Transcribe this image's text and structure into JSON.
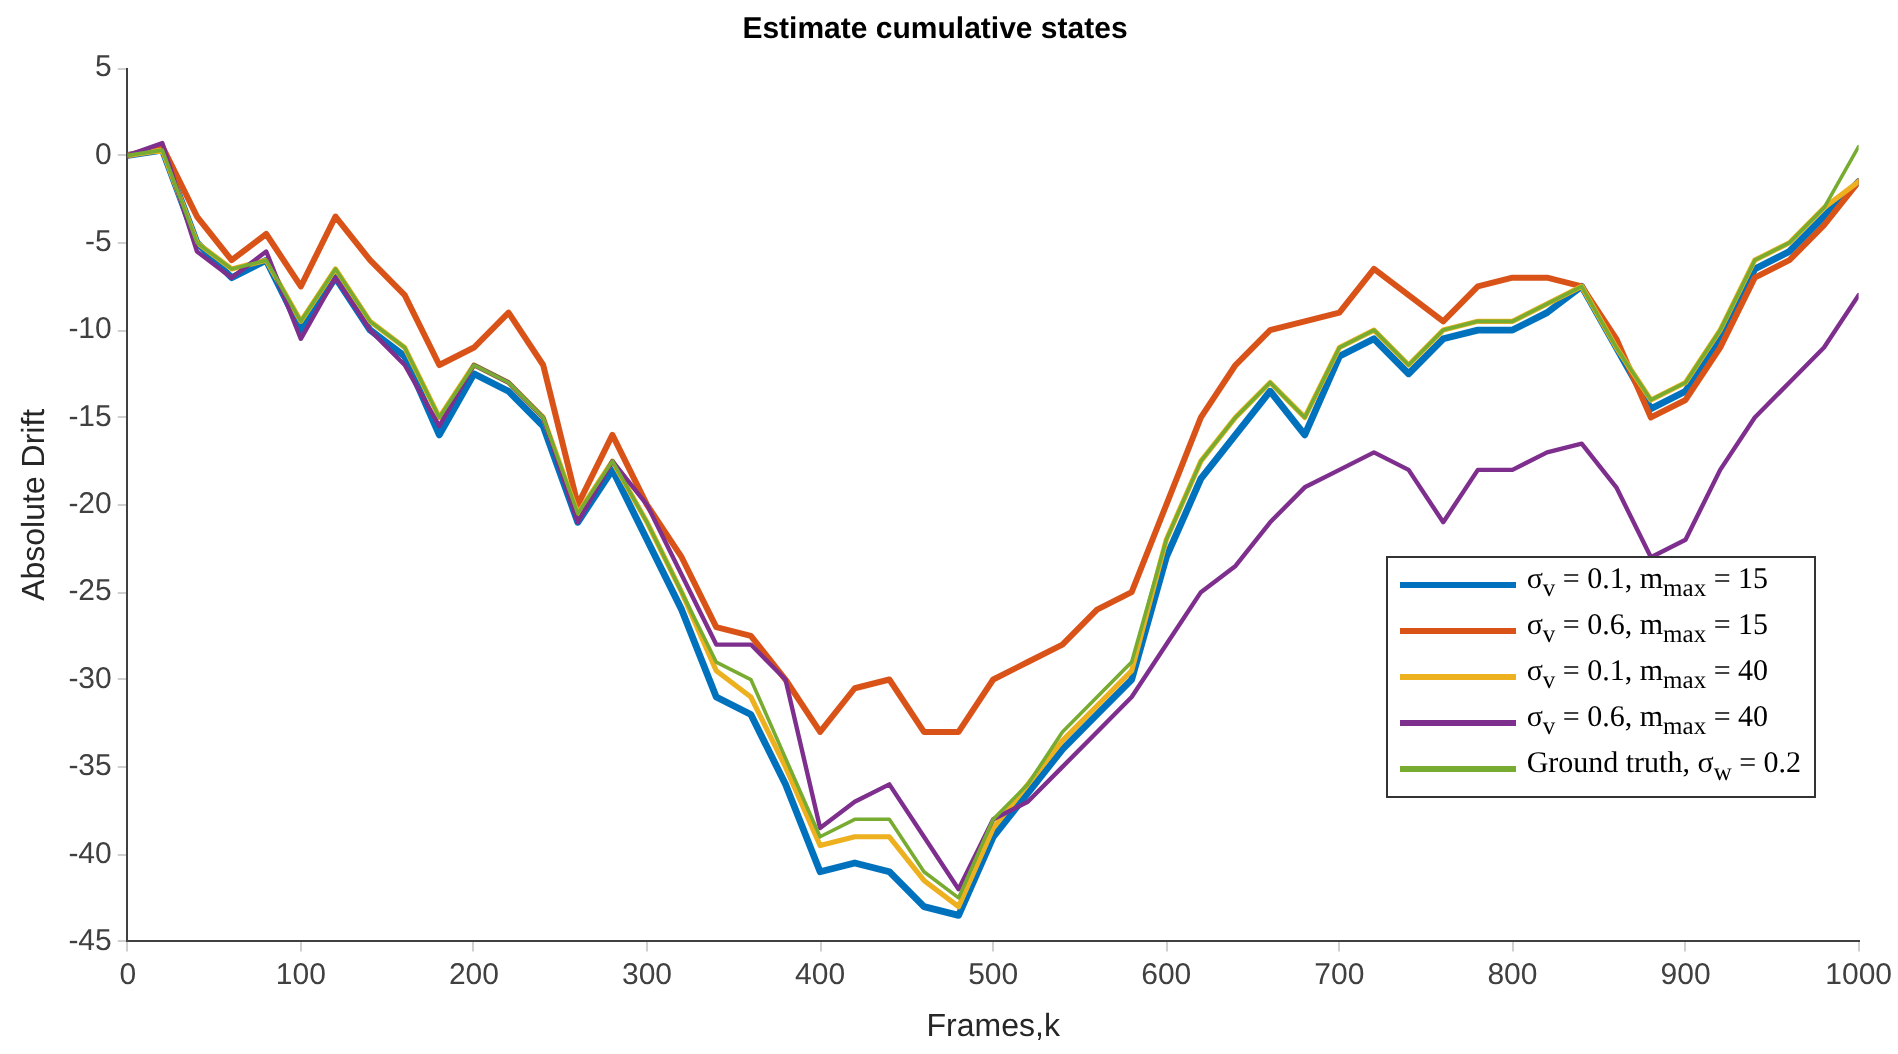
{
  "chart_data": {
    "type": "line",
    "title": "Estimate cumulative states",
    "xlabel": "Frames,k",
    "ylabel": "Absolute Drift",
    "x": [
      0,
      20,
      40,
      60,
      80,
      100,
      120,
      140,
      160,
      180,
      200,
      220,
      240,
      260,
      280,
      300,
      320,
      340,
      360,
      380,
      400,
      420,
      440,
      460,
      480,
      500,
      520,
      540,
      560,
      580,
      600,
      620,
      640,
      660,
      680,
      700,
      720,
      740,
      760,
      780,
      800,
      820,
      840,
      860,
      880,
      900,
      920,
      940,
      960,
      980,
      1000
    ],
    "series": [
      {
        "name": "σ$_{v}$ = 0.1, m$_{max}$ = 15",
        "color": "#0072bd",
        "values": [
          0,
          0.3,
          -5,
          -7,
          -6,
          -10,
          -7,
          -10,
          -11.5,
          -16,
          -12.5,
          -13.5,
          -15.5,
          -21,
          -18,
          -22,
          -26,
          -31,
          -32,
          -36,
          -41,
          -40.5,
          -41,
          -43,
          -43.5,
          -39,
          -36.5,
          -34,
          -32,
          -30,
          -23,
          -18.5,
          -16,
          -13.5,
          -16,
          -11.5,
          -10.5,
          -12.5,
          -10.5,
          -10,
          -10,
          -9,
          -7.5,
          -11,
          -14.5,
          -13.5,
          -10.5,
          -6.5,
          -5.5,
          -3.5,
          -1.5
        ]
      },
      {
        "name": "σ$_{v}$ = 0.6, m$_{max}$ = 15",
        "color": "#d95319",
        "values": [
          0,
          0.5,
          -3.5,
          -6,
          -4.5,
          -7.5,
          -3.5,
          -6,
          -8,
          -12,
          -11,
          -9,
          -12,
          -20,
          -16,
          -20,
          -23,
          -27,
          -27.5,
          -30,
          -33,
          -30.5,
          -30,
          -33,
          -33,
          -30,
          -29,
          -28,
          -26,
          -25,
          -20,
          -15,
          -12,
          -10,
          -9.5,
          -9,
          -6.5,
          -8,
          -9.5,
          -7.5,
          -7,
          -7,
          -7.5,
          -10.5,
          -15,
          -14,
          -11,
          -7,
          -6,
          -4,
          -1.5
        ]
      },
      {
        "name": "σ$_{v}$ = 0.1, m$_{max}$ = 40",
        "color": "#edb120",
        "values": [
          0,
          0.3,
          -5,
          -6.5,
          -6,
          -9.5,
          -6.5,
          -9.5,
          -11,
          -15,
          -12,
          -13,
          -15,
          -20.5,
          -17.5,
          -21,
          -25,
          -29.5,
          -31,
          -35,
          -39.5,
          -39,
          -39,
          -41.5,
          -43,
          -38.5,
          -36,
          -33.5,
          -31.5,
          -29.5,
          -22,
          -17.5,
          -15,
          -13,
          -15,
          -11,
          -10,
          -12,
          -10,
          -9.5,
          -9.5,
          -8.5,
          -7.5,
          -11,
          -14,
          -13,
          -10,
          -6,
          -5,
          -3,
          -1.5
        ]
      },
      {
        "name": "σ$_{v}$ = 0.6, m$_{max}$ = 40",
        "color": "#7e2f8e",
        "values": [
          0,
          0.7,
          -5.5,
          -7,
          -5.5,
          -10.5,
          -7,
          -10,
          -12,
          -15.5,
          -12,
          -13,
          -15,
          -21,
          -17.5,
          -20,
          -24,
          -28,
          -28,
          -30,
          -38.5,
          -37,
          -36,
          -39,
          -42,
          -38,
          -37,
          -35,
          -33,
          -31,
          -28,
          -25,
          -23.5,
          -21,
          -19,
          -18,
          -17,
          -18,
          -21,
          -18,
          -18,
          -17,
          -16.5,
          -19,
          -23,
          -22,
          -18,
          -15,
          -13,
          -11,
          -8
        ]
      },
      {
        "name": "Ground truth, σ$_{w}$ = 0.2",
        "color": "#77ac30",
        "values": [
          0,
          0.3,
          -5,
          -6.5,
          -6,
          -9.5,
          -6.5,
          -9.5,
          -11,
          -15,
          -12,
          -13,
          -15,
          -20.5,
          -17.5,
          -21,
          -25,
          -29,
          -30,
          -34.5,
          -39,
          -38,
          -38,
          -41,
          -42.5,
          -38,
          -36,
          -33,
          -31,
          -29,
          -22,
          -17.5,
          -15,
          -13,
          -15,
          -11,
          -10,
          -12,
          -10,
          -9.5,
          -9.5,
          -8.5,
          -7.5,
          -11,
          -14,
          -13,
          -10,
          -6,
          -5,
          -3,
          0.5
        ]
      }
    ],
    "xlim": [
      0,
      1000
    ],
    "xticks": [
      0,
      100,
      200,
      300,
      400,
      500,
      600,
      700,
      800,
      900,
      1000
    ],
    "ylim": [
      -45,
      5
    ],
    "yticks": [
      -45,
      -40,
      -35,
      -30,
      -25,
      -20,
      -15,
      -10,
      -5,
      0,
      5
    ],
    "grid": false,
    "legend": "bottom right",
    "marker": "none",
    "line_style": "solid"
  }
}
